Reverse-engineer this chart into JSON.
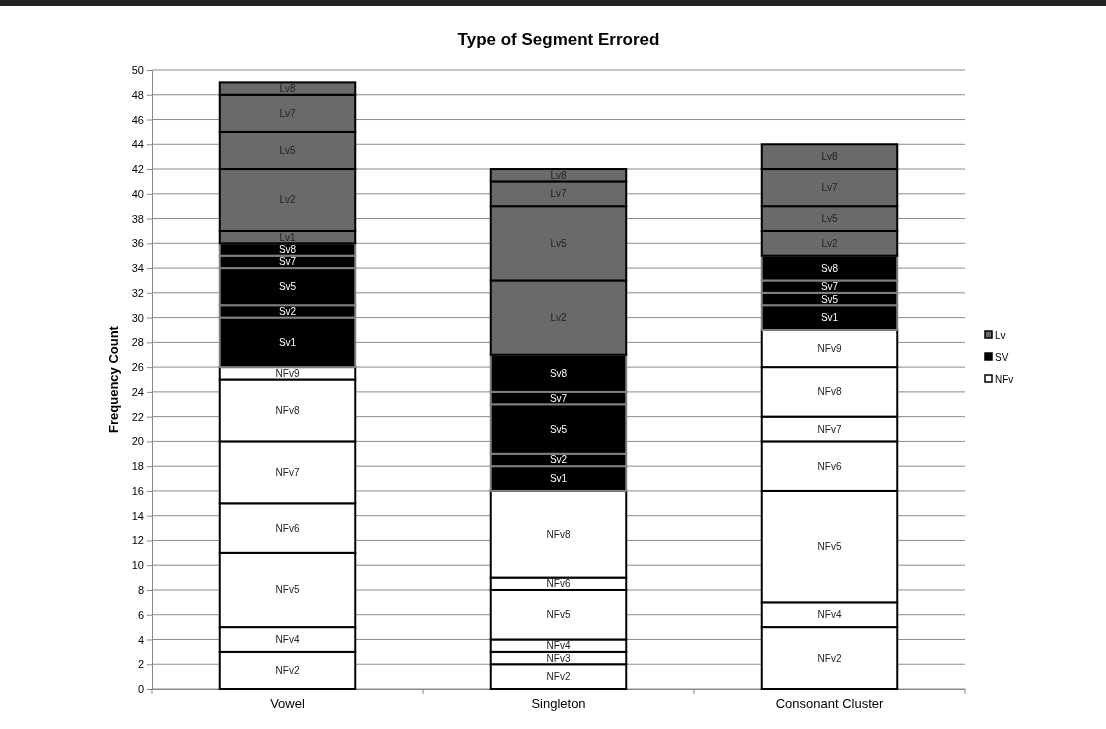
{
  "chart_data": {
    "type": "bar",
    "title": "Type of Segment Errored",
    "ylabel": "Frequency Count",
    "categories": [
      "Vowel",
      "Singleton",
      "Consonant Cluster"
    ],
    "stacked": true,
    "ylim": [
      0,
      50
    ],
    "yticks": [
      0,
      2,
      4,
      6,
      8,
      10,
      12,
      14,
      16,
      18,
      20,
      22,
      24,
      26,
      28,
      30,
      32,
      34,
      36,
      38,
      40,
      42,
      44,
      46,
      48,
      50
    ],
    "grid": "y",
    "legend": "right",
    "series": [
      {
        "name": "NFv2",
        "color": "#ffffff",
        "values": [
          3,
          2,
          5
        ]
      },
      {
        "name": "NFv3",
        "color": "#ffffff",
        "values": [
          null,
          1,
          null
        ]
      },
      {
        "name": "NFv4",
        "color": "#ffffff",
        "values": [
          2,
          1,
          2
        ]
      },
      {
        "name": "NFv5",
        "color": "#ffffff",
        "values": [
          6,
          4,
          9
        ]
      },
      {
        "name": "NFv6",
        "color": "#ffffff",
        "values": [
          4,
          1,
          4
        ]
      },
      {
        "name": "NFv7",
        "color": "#ffffff",
        "values": [
          5,
          null,
          2
        ]
      },
      {
        "name": "NFv8",
        "color": "#ffffff",
        "values": [
          5,
          7,
          4
        ]
      },
      {
        "name": "NFv9",
        "color": "#ffffff",
        "values": [
          1,
          null,
          3
        ]
      },
      {
        "name": "Sv1",
        "color": "#000000",
        "values": [
          4,
          2,
          2
        ]
      },
      {
        "name": "Sv2",
        "color": "#000000",
        "values": [
          1,
          1,
          null
        ]
      },
      {
        "name": "Sv5",
        "color": "#000000",
        "values": [
          3,
          4,
          1
        ]
      },
      {
        "name": "Sv7",
        "color": "#000000",
        "values": [
          1,
          1,
          1
        ]
      },
      {
        "name": "Sv8",
        "color": "#000000",
        "values": [
          1,
          3,
          2
        ]
      },
      {
        "name": "Lv1",
        "color": "#6a6a6a",
        "values": [
          1,
          null,
          null
        ]
      },
      {
        "name": "Lv2",
        "color": "#6a6a6a",
        "values": [
          5,
          6,
          2
        ]
      },
      {
        "name": "Lv5",
        "color": "#6a6a6a",
        "values": [
          3,
          6,
          2
        ]
      },
      {
        "name": "Lv7",
        "color": "#6a6a6a",
        "values": [
          3,
          2,
          3
        ]
      },
      {
        "name": "Lv8",
        "color": "#6a6a6a",
        "values": [
          1,
          1,
          2
        ]
      },
      {
        "name": "Lv",
        "color": "#6a6a6a",
        "values": [
          null,
          null,
          null
        ]
      },
      {
        "name": "SV",
        "color": "#000000",
        "values": [
          null,
          null,
          null
        ]
      },
      {
        "name": "NFv",
        "color": "#ffffff",
        "values": [
          null,
          null,
          null
        ]
      }
    ]
  }
}
